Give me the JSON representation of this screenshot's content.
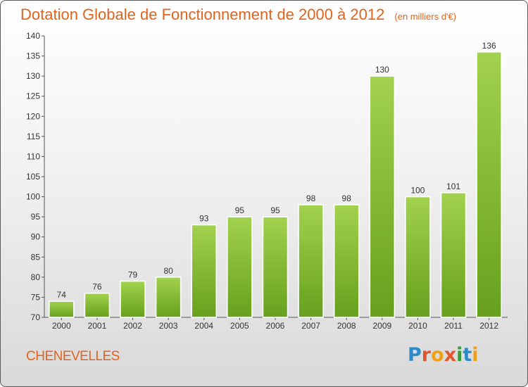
{
  "chart_data": {
    "type": "bar",
    "title": "Dotation Globale de Fonctionnement de 2000 à 2012",
    "subtitle": "(en milliers d'€)",
    "xlabel": "",
    "ylabel": "",
    "categories": [
      "2000",
      "2001",
      "2002",
      "2003",
      "2004",
      "2005",
      "2006",
      "2007",
      "2008",
      "2009",
      "2010",
      "2011",
      "2012"
    ],
    "values": [
      74,
      76,
      79,
      80,
      93,
      95,
      95,
      98,
      98,
      130,
      100,
      101,
      136
    ],
    "ylim": [
      70,
      140
    ],
    "yticks": [
      70,
      75,
      80,
      85,
      90,
      95,
      100,
      105,
      110,
      115,
      120,
      125,
      130,
      135,
      140
    ],
    "grid": false,
    "bar_color": "#8cc43c"
  },
  "footer": {
    "city": "CHENEVELLES",
    "logo_text": "Proxiti",
    "logo_colors": [
      "#2e8bc8",
      "#e2562c",
      "#f0a018",
      "#e2562c",
      "#3a9a3a",
      "#2e8bc8",
      "#f0a018"
    ]
  }
}
